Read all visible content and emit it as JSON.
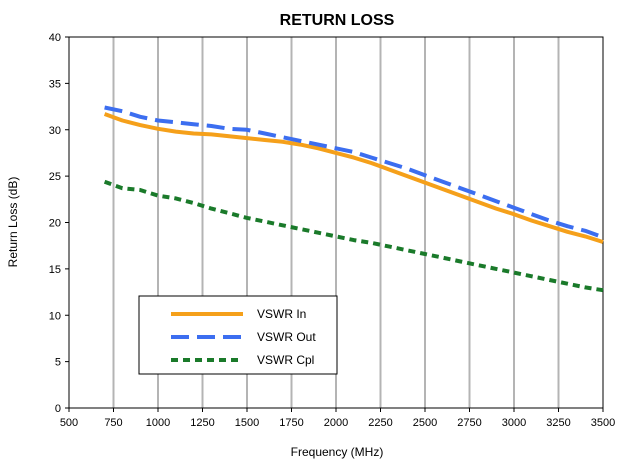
{
  "chart_data": {
    "type": "line",
    "title": "RETURN LOSS",
    "xlabel": "Frequency (MHz)",
    "ylabel": "Return Loss (dB)",
    "xlim": [
      500,
      3500
    ],
    "ylim": [
      0,
      40
    ],
    "xticks": [
      500,
      750,
      1000,
      1250,
      1500,
      1750,
      2000,
      2250,
      2500,
      2750,
      3000,
      3250,
      3500
    ],
    "xtick_labels": [
      "500",
      "750",
      "1000",
      "1250",
      "1500",
      "1750",
      "2000",
      "2250",
      "2500",
      "2750",
      "3000",
      "3250",
      "3500"
    ],
    "yticks": [
      0,
      5,
      10,
      15,
      20,
      25,
      30,
      35,
      40
    ],
    "ytick_labels": [
      "0",
      "5",
      "10",
      "15",
      "20",
      "25",
      "30",
      "35",
      "40"
    ],
    "grid": "vertical",
    "legend_position": "bottom-left",
    "series": [
      {
        "name": "VSWR In",
        "color": "#f5a01a",
        "dash": "solid",
        "x": [
          700,
          800,
          900,
          1000,
          1100,
          1200,
          1300,
          1400,
          1500,
          1600,
          1700,
          1800,
          1900,
          2000,
          2100,
          2200,
          2300,
          2400,
          2500,
          2600,
          2700,
          2800,
          2900,
          3000,
          3100,
          3200,
          3300,
          3400,
          3500
        ],
        "values": [
          31.7,
          31.0,
          30.5,
          30.1,
          29.8,
          29.6,
          29.5,
          29.3,
          29.1,
          28.9,
          28.7,
          28.4,
          28.0,
          27.5,
          27.0,
          26.4,
          25.7,
          25.0,
          24.3,
          23.6,
          22.9,
          22.2,
          21.5,
          20.9,
          20.2,
          19.6,
          19.0,
          18.5,
          17.9
        ]
      },
      {
        "name": "VSWR Out",
        "color": "#3c6ef0",
        "dash": "long-dash",
        "x": [
          700,
          800,
          900,
          1000,
          1100,
          1200,
          1300,
          1400,
          1500,
          1600,
          1700,
          1800,
          1900,
          2000,
          2100,
          2200,
          2300,
          2400,
          2500,
          2600,
          2700,
          2800,
          2900,
          3000,
          3100,
          3200,
          3300,
          3400,
          3500
        ],
        "values": [
          32.4,
          32.0,
          31.4,
          31.0,
          30.8,
          30.6,
          30.4,
          30.1,
          30.0,
          29.6,
          29.2,
          28.8,
          28.4,
          28.0,
          27.6,
          27.0,
          26.4,
          25.8,
          25.1,
          24.4,
          23.7,
          23.0,
          22.3,
          21.6,
          20.9,
          20.2,
          19.6,
          19.1,
          18.4
        ]
      },
      {
        "name": "VSWR Cpl",
        "color": "#1a7a2a",
        "dash": "short-dash",
        "x": [
          700,
          800,
          900,
          1000,
          1100,
          1200,
          1300,
          1400,
          1500,
          1600,
          1700,
          1800,
          1900,
          2000,
          2100,
          2200,
          2300,
          2400,
          2500,
          2600,
          2700,
          2800,
          2900,
          3000,
          3100,
          3200,
          3300,
          3400,
          3500
        ],
        "values": [
          24.4,
          23.7,
          23.5,
          22.9,
          22.6,
          22.1,
          21.5,
          21.0,
          20.5,
          20.1,
          19.7,
          19.3,
          18.9,
          18.5,
          18.1,
          17.8,
          17.4,
          17.0,
          16.6,
          16.2,
          15.8,
          15.4,
          15.0,
          14.6,
          14.2,
          13.8,
          13.4,
          13.0,
          12.7
        ]
      }
    ]
  }
}
